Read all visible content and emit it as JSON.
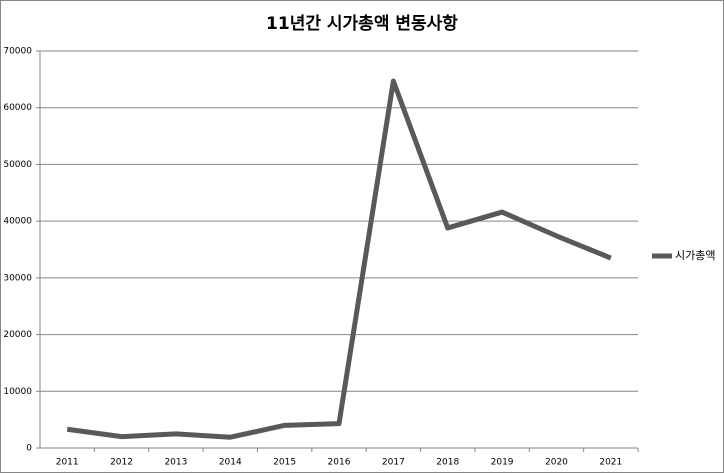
{
  "chart_data": {
    "type": "line",
    "title": "11년간 시가총액 변동사항",
    "categories": [
      "2011",
      "2012",
      "2013",
      "2014",
      "2015",
      "2016",
      "2017",
      "2018",
      "2019",
      "2020",
      "2021"
    ],
    "series": [
      {
        "name": "시가총액",
        "color": "#595959",
        "values": [
          3300,
          2000,
          2500,
          1900,
          4000,
          4300,
          64700,
          38800,
          41600,
          37400,
          33500
        ]
      }
    ],
    "ylim": [
      0,
      70000
    ],
    "yticks": [
      0,
      10000,
      20000,
      30000,
      40000,
      50000,
      60000,
      70000
    ],
    "grid": true,
    "legend": "right"
  }
}
